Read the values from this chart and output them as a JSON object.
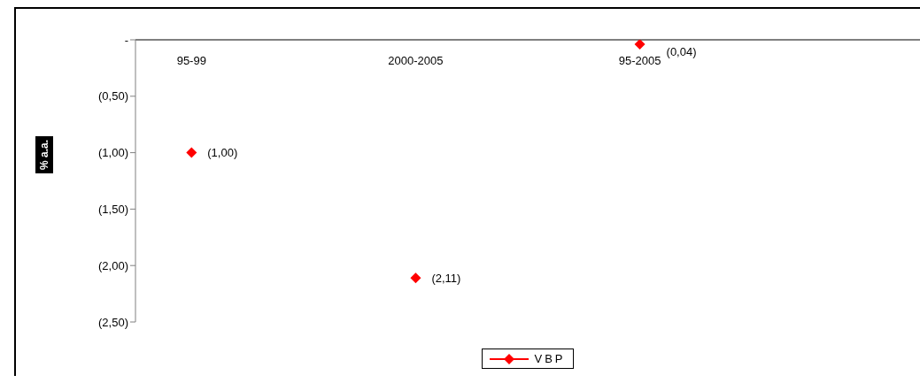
{
  "chart_data": {
    "type": "scatter",
    "ylabel": "% a.a.",
    "categories": [
      "95-99",
      null,
      "2000-2005",
      null,
      "95-2005",
      null,
      null
    ],
    "series": [
      {
        "name": "VBP",
        "color": "#ff0000",
        "values": [
          -1.0,
          null,
          -2.11,
          null,
          -0.04,
          null,
          null
        ],
        "value_labels": [
          "(1,00)",
          null,
          "(2,11)",
          null,
          "(0,04)",
          null,
          null
        ]
      }
    ],
    "ylim": [
      -2.5,
      0
    ],
    "yticks": [
      {
        "value": 0,
        "label": "-"
      },
      {
        "value": -0.5,
        "label": "(0,50)"
      },
      {
        "value": -1,
        "label": "(1,00)"
      },
      {
        "value": -1.5,
        "label": "(1,50)"
      },
      {
        "value": -2,
        "label": "(2,00)"
      },
      {
        "value": -2.5,
        "label": "(2,50)"
      }
    ],
    "grid": false,
    "legend": "bottom",
    "marker": "diamond"
  }
}
